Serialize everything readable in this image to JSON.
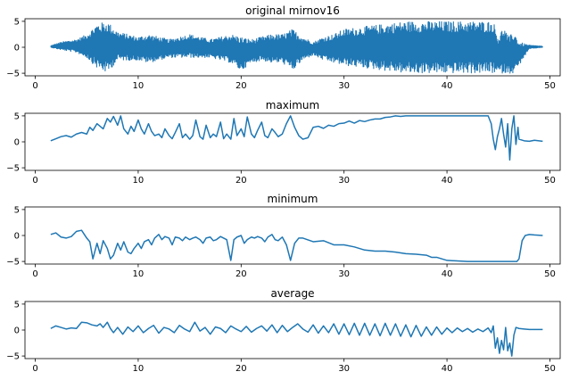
{
  "chart_data": [
    {
      "type": "line",
      "title": "original mirnov16",
      "xlabel": "",
      "ylabel": "",
      "xlim": [
        -1,
        51
      ],
      "ylim": [
        -5.5,
        5.5
      ],
      "xticks": [
        0,
        10,
        20,
        30,
        40,
        50
      ],
      "yticks": [
        -5,
        0,
        5
      ],
      "grid": false,
      "series": [
        {
          "color": "#1f77b4",
          "style": "dense oscillation",
          "envelope": {
            "x": [
              1.5,
              2.5,
              4,
              5,
              6,
              7,
              8,
              9,
              10,
              11,
              12,
              13,
              14,
              15,
              16,
              17,
              18,
              19,
              20,
              21,
              22,
              23,
              24,
              25,
              26,
              27,
              28,
              29,
              30,
              32,
              34,
              36,
              38,
              40,
              42,
              44,
              44.5,
              45,
              45.5,
              46,
              46.5,
              47,
              48,
              49.3
            ],
            "upper": [
              0.3,
              1.0,
              1.5,
              2.5,
              4.5,
              5.0,
              3.0,
              2.5,
              2.0,
              2.5,
              2.0,
              1.5,
              2.0,
              2.5,
              2.0,
              1.5,
              2.0,
              2.5,
              2.0,
              1.5,
              2.0,
              2.5,
              2.5,
              3.5,
              2.0,
              1.0,
              2.0,
              2.5,
              3.5,
              4.0,
              4.5,
              5.0,
              5.0,
              5.0,
              5.0,
              5.0,
              5.0,
              2.0,
              4.0,
              2.0,
              3.0,
              1.0,
              0.4,
              0.2
            ],
            "lower": [
              0.0,
              -0.5,
              -1.0,
              -2.0,
              -4.0,
              -5.0,
              -2.5,
              -2.5,
              -2.5,
              -3.0,
              -2.5,
              -2.0,
              -2.0,
              -2.0,
              -2.0,
              -2.0,
              -2.5,
              -3.0,
              -4.5,
              -3.0,
              -2.5,
              -3.0,
              -3.0,
              -4.5,
              -2.5,
              -1.5,
              -2.5,
              -3.0,
              -3.5,
              -4.0,
              -4.5,
              -5.0,
              -5.0,
              -5.0,
              -5.0,
              -5.0,
              -5.0,
              -5.0,
              -5.0,
              -5.0,
              -5.0,
              -3.5,
              -0.3,
              0.0
            ]
          }
        }
      ]
    },
    {
      "type": "line",
      "title": "maximum",
      "xlabel": "",
      "ylabel": "",
      "xlim": [
        -1,
        51
      ],
      "ylim": [
        -5.5,
        5.5
      ],
      "xticks": [
        0,
        10,
        20,
        30,
        40,
        50
      ],
      "yticks": [
        -5,
        0,
        5
      ],
      "grid": false,
      "series": [
        {
          "color": "#1f77b4",
          "x": [
            1.5,
            2.0,
            2.5,
            3.0,
            3.5,
            4.0,
            4.5,
            5.0,
            5.3,
            5.6,
            6.0,
            6.3,
            6.6,
            7.0,
            7.3,
            7.6,
            8.0,
            8.3,
            8.6,
            9.0,
            9.3,
            9.6,
            10.0,
            10.3,
            10.6,
            11.0,
            11.3,
            11.6,
            12.0,
            12.3,
            12.6,
            13.0,
            13.3,
            13.6,
            14.0,
            14.3,
            14.6,
            15.0,
            15.3,
            15.6,
            16.0,
            16.3,
            16.6,
            17.0,
            17.3,
            17.6,
            18.0,
            18.3,
            18.6,
            19.0,
            19.3,
            19.6,
            20.0,
            20.3,
            20.6,
            21.0,
            21.3,
            21.6,
            22.0,
            22.3,
            22.6,
            23.0,
            23.3,
            23.6,
            24.0,
            24.4,
            24.8,
            25.2,
            25.6,
            26.0,
            26.5,
            27.0,
            27.5,
            28.0,
            28.5,
            29.0,
            29.5,
            30.0,
            30.5,
            31.0,
            31.5,
            32.0,
            32.5,
            33.0,
            33.5,
            34.0,
            34.5,
            35.0,
            35.5,
            36.0,
            38.0,
            40.0,
            42.0,
            44.0,
            44.3,
            44.5,
            44.7,
            44.9,
            45.1,
            45.3,
            45.5,
            45.7,
            45.9,
            46.1,
            46.3,
            46.5,
            46.7,
            46.9,
            47.0,
            47.5,
            48.0,
            48.5,
            49.3
          ],
          "values": [
            0.2,
            0.6,
            1.0,
            1.2,
            0.9,
            1.5,
            1.8,
            1.5,
            2.8,
            2.2,
            3.5,
            3.0,
            2.5,
            4.5,
            3.8,
            4.9,
            3.2,
            5.0,
            2.5,
            1.5,
            3.0,
            2.0,
            4.2,
            2.5,
            1.5,
            3.5,
            2.0,
            1.2,
            1.5,
            0.8,
            2.5,
            1.2,
            0.6,
            1.8,
            3.5,
            0.8,
            1.5,
            0.5,
            1.2,
            4.2,
            1.0,
            0.5,
            3.2,
            0.8,
            1.5,
            1.0,
            3.8,
            0.6,
            1.5,
            0.5,
            4.5,
            1.2,
            2.5,
            1.0,
            4.8,
            1.5,
            0.8,
            2.2,
            3.8,
            1.2,
            0.8,
            2.5,
            1.8,
            1.0,
            1.5,
            3.5,
            5.0,
            2.8,
            1.2,
            0.5,
            0.8,
            2.8,
            3.0,
            2.6,
            3.2,
            3.0,
            3.5,
            3.6,
            4.0,
            3.6,
            4.1,
            3.9,
            4.2,
            4.4,
            4.4,
            4.7,
            4.8,
            5.0,
            4.9,
            5.0,
            5.0,
            5.0,
            5.0,
            5.0,
            3.5,
            0.5,
            -1.5,
            1.0,
            2.5,
            4.5,
            1.5,
            -1.0,
            3.5,
            -3.5,
            2.5,
            5.0,
            -0.5,
            2.8,
            0.5,
            0.2,
            0.1,
            0.3,
            0.1
          ]
        }
      ]
    },
    {
      "type": "line",
      "title": "minimum",
      "xlabel": "",
      "ylabel": "",
      "xlim": [
        -1,
        51
      ],
      "ylim": [
        -5.5,
        5.5
      ],
      "xticks": [
        0,
        10,
        20,
        30,
        40,
        50
      ],
      "yticks": [
        -5,
        0,
        5
      ],
      "grid": false,
      "series": [
        {
          "color": "#1f77b4",
          "x": [
            1.5,
            2.0,
            2.5,
            3.0,
            3.5,
            4.0,
            4.5,
            5.0,
            5.3,
            5.6,
            6.0,
            6.3,
            6.6,
            7.0,
            7.3,
            7.6,
            8.0,
            8.3,
            8.6,
            9.0,
            9.3,
            9.6,
            10.0,
            10.3,
            10.6,
            11.0,
            11.3,
            11.6,
            12.0,
            12.3,
            12.6,
            13.0,
            13.3,
            13.6,
            14.0,
            14.3,
            14.6,
            15.0,
            15.3,
            15.6,
            16.0,
            16.3,
            16.6,
            17.0,
            17.3,
            17.6,
            18.0,
            18.3,
            18.6,
            19.0,
            19.3,
            19.6,
            20.0,
            20.3,
            20.6,
            21.0,
            21.3,
            21.6,
            22.0,
            22.3,
            22.6,
            23.0,
            23.3,
            23.6,
            24.0,
            24.4,
            24.8,
            25.2,
            25.6,
            26.0,
            27.0,
            28.0,
            29.0,
            30.0,
            31.0,
            32.0,
            33.0,
            34.0,
            35.0,
            36.0,
            37.0,
            38.0,
            38.5,
            39.0,
            40.0,
            42.0,
            44.0,
            46.0,
            46.8,
            47.0,
            47.3,
            47.6,
            48.0,
            48.5,
            49.3
          ],
          "values": [
            0.2,
            0.5,
            -0.3,
            -0.5,
            -0.2,
            0.8,
            1.0,
            -0.5,
            -1.2,
            -4.5,
            -1.5,
            -3.5,
            -1.0,
            -2.5,
            -4.5,
            -3.8,
            -1.5,
            -2.8,
            -1.2,
            -3.2,
            -3.5,
            -2.5,
            -1.5,
            -2.5,
            -1.2,
            -0.8,
            -1.8,
            -0.5,
            0.2,
            -0.8,
            -0.2,
            -0.5,
            -1.8,
            -0.3,
            -0.5,
            -1.0,
            -0.3,
            -0.8,
            -0.5,
            -0.3,
            -0.8,
            -1.5,
            -0.5,
            -0.3,
            -1.0,
            -0.8,
            -0.2,
            -0.5,
            -0.8,
            -4.8,
            -0.8,
            -0.3,
            0.0,
            -1.5,
            -0.8,
            -0.3,
            -0.5,
            -0.2,
            -0.5,
            -1.2,
            -0.3,
            0.2,
            -0.8,
            -1.0,
            -0.3,
            -1.8,
            -4.8,
            -1.5,
            -0.5,
            -0.5,
            -1.2,
            -1.0,
            -1.8,
            -1.8,
            -2.2,
            -2.8,
            -3.0,
            -3.0,
            -3.2,
            -3.5,
            -3.6,
            -3.8,
            -4.2,
            -4.2,
            -4.8,
            -5.0,
            -5.0,
            -5.0,
            -5.0,
            -4.5,
            -1.0,
            0.0,
            0.2,
            0.1,
            0.0
          ]
        }
      ]
    },
    {
      "type": "line",
      "title": "average",
      "xlabel": "",
      "ylabel": "",
      "xlim": [
        -1,
        51
      ],
      "ylim": [
        -5.5,
        5.5
      ],
      "xticks": [
        0,
        10,
        20,
        30,
        40,
        50
      ],
      "yticks": [
        -5,
        0,
        5
      ],
      "grid": false,
      "series": [
        {
          "color": "#1f77b4",
          "x": [
            1.5,
            2.0,
            2.5,
            3.0,
            3.5,
            4.0,
            4.5,
            5.0,
            5.5,
            6.0,
            6.3,
            6.6,
            7.0,
            7.3,
            7.6,
            8.0,
            8.5,
            9.0,
            9.5,
            10.0,
            10.5,
            11.0,
            11.5,
            12.0,
            12.5,
            13.0,
            13.5,
            14.0,
            14.5,
            15.0,
            15.5,
            16.0,
            16.5,
            17.0,
            17.5,
            18.0,
            18.5,
            19.0,
            19.5,
            20.0,
            20.5,
            21.0,
            21.5,
            22.0,
            22.5,
            23.0,
            23.5,
            24.0,
            24.5,
            25.0,
            25.5,
            26.0,
            26.5,
            27.0,
            27.5,
            28.0,
            28.5,
            29.0,
            29.5,
            30.0,
            30.5,
            31.0,
            31.5,
            32.0,
            32.5,
            33.0,
            33.5,
            34.0,
            34.5,
            35.0,
            35.5,
            36.0,
            36.5,
            37.0,
            37.5,
            38.0,
            38.5,
            39.0,
            39.5,
            40.0,
            40.5,
            41.0,
            41.5,
            42.0,
            42.5,
            43.0,
            43.5,
            44.0,
            44.3,
            44.5,
            44.7,
            44.9,
            45.1,
            45.3,
            45.5,
            45.7,
            45.9,
            46.1,
            46.3,
            46.5,
            46.7,
            47.0,
            47.5,
            48.0,
            49.3
          ],
          "values": [
            0.3,
            0.8,
            0.5,
            0.2,
            0.4,
            0.3,
            1.5,
            1.4,
            1.0,
            0.8,
            1.2,
            0.5,
            1.5,
            0.3,
            -0.5,
            0.5,
            -0.8,
            0.6,
            -0.3,
            0.8,
            -0.5,
            0.3,
            0.9,
            -0.6,
            0.5,
            0.2,
            -0.5,
            0.9,
            0.2,
            -0.3,
            1.5,
            -0.2,
            0.5,
            -0.8,
            0.6,
            0.3,
            -0.5,
            0.8,
            0.2,
            -0.3,
            0.7,
            -0.4,
            0.3,
            0.8,
            -0.2,
            1.0,
            -0.5,
            0.9,
            -0.3,
            0.5,
            1.2,
            0.2,
            -0.4,
            1.0,
            -0.6,
            0.8,
            -0.5,
            1.2,
            -0.8,
            1.2,
            -0.9,
            1.3,
            -1.0,
            1.3,
            -1.0,
            1.2,
            -1.1,
            1.3,
            -1.0,
            1.2,
            -1.2,
            1.0,
            -1.3,
            0.9,
            -1.2,
            0.6,
            -1.0,
            0.6,
            -0.8,
            0.4,
            -0.5,
            0.4,
            -0.3,
            0.3,
            -0.4,
            0.2,
            -0.3,
            0.4,
            -0.5,
            0.8,
            -3.5,
            -1.5,
            -4.5,
            -2.0,
            -3.8,
            0.5,
            -4.0,
            -2.5,
            -5.0,
            -1.0,
            0.5,
            0.3,
            0.2,
            0.1,
            0.1
          ]
        }
      ]
    }
  ]
}
